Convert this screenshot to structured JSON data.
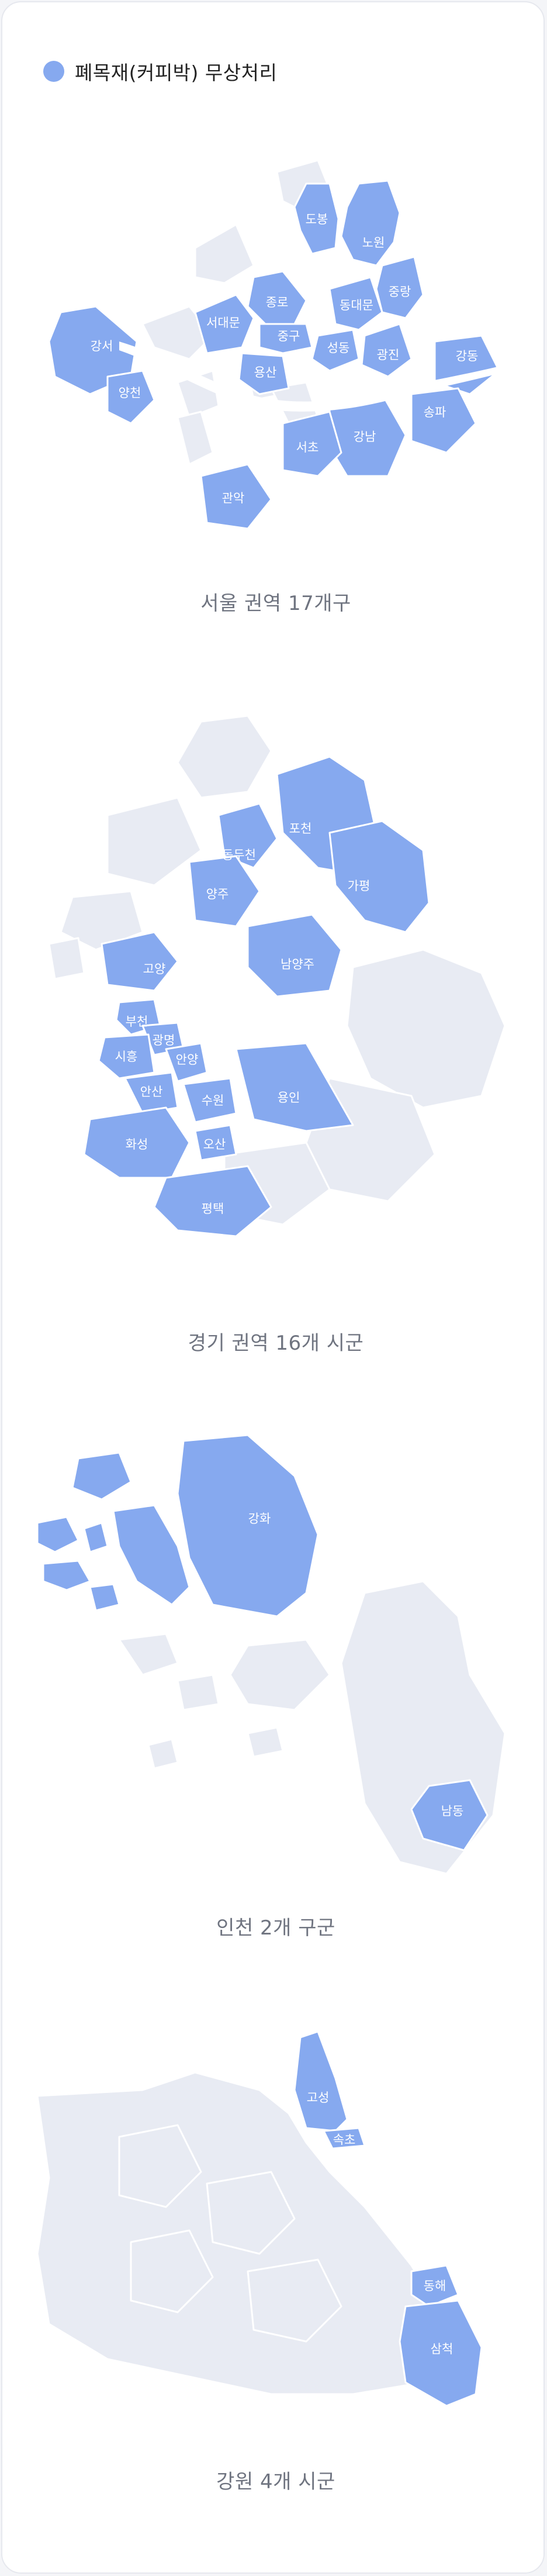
{
  "legend": {
    "label": "폐목재(커피박) 무상처리",
    "color": "#86a9ef"
  },
  "colors": {
    "highlight": "#86a9ef",
    "base": "#e8ebf3"
  },
  "maps": [
    {
      "caption": "서울 권역 17개구",
      "regions": [
        "도봉",
        "노원",
        "중랑",
        "동대문",
        "종로",
        "서대문",
        "중구",
        "성동",
        "광진",
        "강동",
        "강서",
        "양천",
        "용산",
        "송파",
        "강남",
        "서초",
        "관악"
      ]
    },
    {
      "caption": "경기 권역 16개 시군",
      "regions": [
        "포천",
        "동두천",
        "양주",
        "가평",
        "고양",
        "남양주",
        "부천",
        "광명",
        "시흥",
        "안양",
        "안산",
        "수원",
        "용인",
        "화성",
        "오산",
        "평택"
      ]
    },
    {
      "caption": "인천 2개 구군",
      "regions": [
        "강화",
        "남동"
      ]
    },
    {
      "caption": "강원 4개 시군",
      "regions": [
        "고성",
        "속초",
        "동해",
        "삼척"
      ]
    }
  ]
}
